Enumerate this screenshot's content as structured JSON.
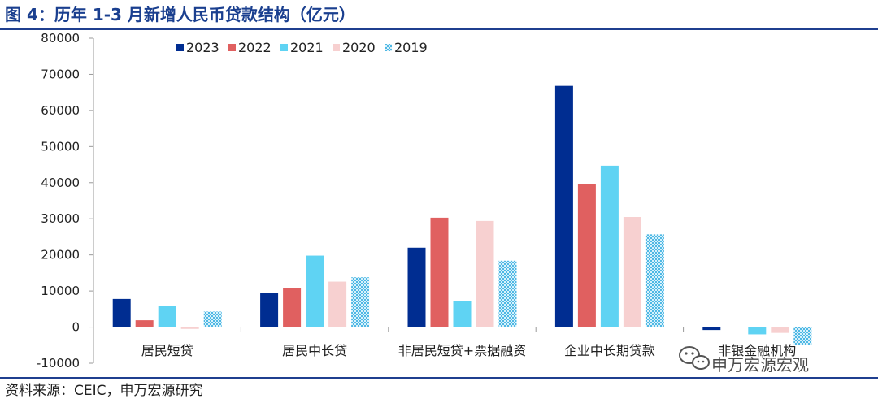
{
  "title": "图 4：历年 1-3 月新增人民币贷款结构（亿元）",
  "source": "资料来源：CEIC，申万宏源研究",
  "watermark": "申万宏源宏观",
  "chart_data": {
    "type": "bar",
    "title": "图 4：历年 1-3 月新增人民币贷款结构（亿元）",
    "xlabel": "",
    "ylabel": "",
    "ylim": [
      -10000,
      80000
    ],
    "yticks": [
      -10000,
      0,
      10000,
      20000,
      30000,
      40000,
      50000,
      60000,
      70000,
      80000
    ],
    "grid": false,
    "legend_position": "top-left",
    "categories": [
      "居民短贷",
      "居民中长贷",
      "非居民短贷+票据融资",
      "企业中长期贷款",
      "非银金融机构"
    ],
    "series": [
      {
        "name": "2023",
        "color": "#002d91",
        "pattern": "solid",
        "values": [
          7800,
          9500,
          22000,
          66800,
          -800
        ]
      },
      {
        "name": "2022",
        "color": "#e06060",
        "pattern": "solid",
        "values": [
          1900,
          10700,
          30300,
          39600,
          0
        ]
      },
      {
        "name": "2021",
        "color": "#5fd3f3",
        "pattern": "solid",
        "values": [
          5800,
          19800,
          7100,
          44700,
          -2000
        ]
      },
      {
        "name": "2020",
        "color": "#f7d0d0",
        "pattern": "solid",
        "values": [
          -500,
          12600,
          29400,
          30500,
          -1600
        ]
      },
      {
        "name": "2019",
        "color": "#6cc6ea",
        "pattern": "checker",
        "values": [
          4300,
          13800,
          18400,
          25700,
          -4900
        ]
      }
    ]
  }
}
